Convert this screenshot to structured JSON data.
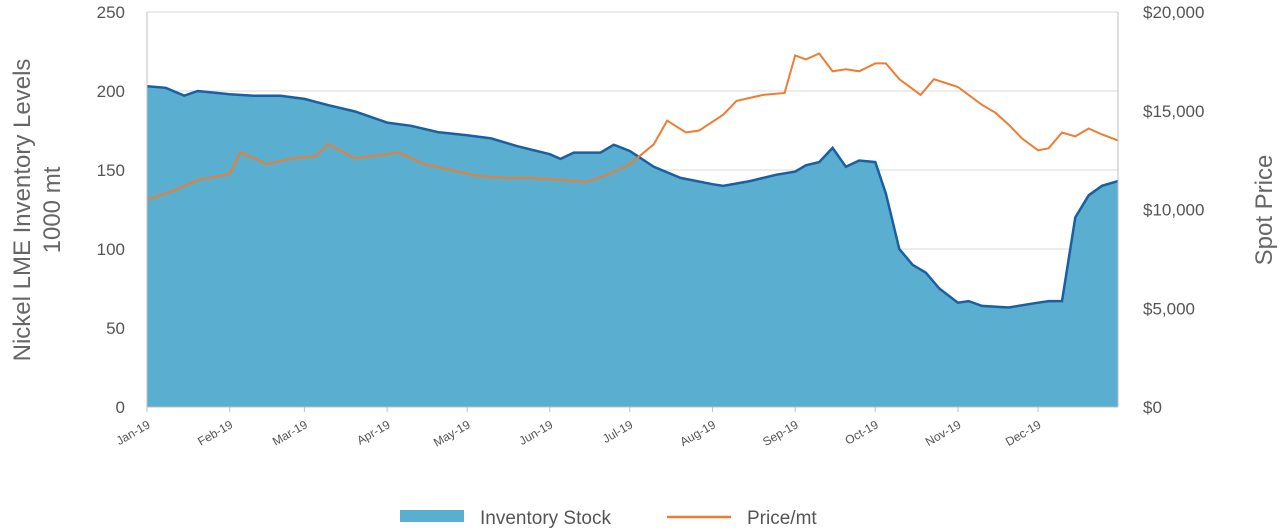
{
  "chart_data": {
    "type": "area",
    "ylabel_left_line1": "Nickel LME Inventory Levels",
    "ylabel_left_line2": "1000 mt",
    "ylabel_right": "Spot Price",
    "ylim_left": [
      0,
      250
    ],
    "ylim_right": [
      0,
      20000
    ],
    "y_ticks_left": [
      "0",
      "50",
      "100",
      "150",
      "200",
      "250"
    ],
    "y_ticks_right": [
      "$0",
      "$5,000",
      "$10,000",
      "$15,000",
      "$20,000"
    ],
    "grid": "horizontal",
    "legend_position": "bottom",
    "x_ticks": [
      "Jan-19",
      "Feb-19",
      "Mar-19",
      "Apr-19",
      "May-19",
      "Jun-19",
      "Jul-19",
      "Aug-19",
      "Sep-19",
      "Oct-19",
      "Nov-19",
      "Dec-19"
    ],
    "colors": {
      "inventory": "#5aaed0",
      "inventory_line": "#1a5fa3",
      "price": "#ed7d31",
      "grid": "#d9d9d9"
    },
    "series": [
      {
        "name": "Inventory Stock",
        "axis": "left",
        "type": "area",
        "x": [
          "2019-01-01",
          "2019-01-08",
          "2019-01-15",
          "2019-01-20",
          "2019-02-01",
          "2019-02-10",
          "2019-02-20",
          "2019-03-01",
          "2019-03-10",
          "2019-03-20",
          "2019-04-01",
          "2019-04-10",
          "2019-04-20",
          "2019-05-01",
          "2019-05-10",
          "2019-05-20",
          "2019-06-01",
          "2019-06-05",
          "2019-06-10",
          "2019-06-20",
          "2019-06-25",
          "2019-07-01",
          "2019-07-10",
          "2019-07-20",
          "2019-08-01",
          "2019-08-05",
          "2019-08-15",
          "2019-08-25",
          "2019-09-01",
          "2019-09-05",
          "2019-09-10",
          "2019-09-15",
          "2019-09-20",
          "2019-09-25",
          "2019-10-01",
          "2019-10-05",
          "2019-10-10",
          "2019-10-15",
          "2019-10-20",
          "2019-10-25",
          "2019-11-01",
          "2019-11-05",
          "2019-11-10",
          "2019-11-20",
          "2019-12-01",
          "2019-12-05",
          "2019-12-10",
          "2019-12-15",
          "2019-12-20",
          "2019-12-25",
          "2019-12-31"
        ],
        "values": [
          203,
          202,
          197,
          200,
          198,
          197,
          197,
          195,
          191,
          187,
          180,
          178,
          174,
          172,
          170,
          165,
          160,
          157,
          161,
          161,
          166,
          162,
          152,
          145,
          141,
          140,
          143,
          147,
          149,
          153,
          155,
          164,
          152,
          156,
          155,
          135,
          100,
          90,
          85,
          75,
          66,
          67,
          64,
          63,
          66,
          67,
          67,
          120,
          134,
          140,
          143
        ]
      },
      {
        "name": "Price/mt",
        "axis": "right",
        "type": "line",
        "x": [
          "2019-01-01",
          "2019-01-10",
          "2019-01-20",
          "2019-02-01",
          "2019-02-05",
          "2019-02-15",
          "2019-02-25",
          "2019-03-05",
          "2019-03-10",
          "2019-03-20",
          "2019-04-01",
          "2019-04-05",
          "2019-04-15",
          "2019-04-25",
          "2019-05-05",
          "2019-05-15",
          "2019-05-25",
          "2019-06-05",
          "2019-06-15",
          "2019-06-25",
          "2019-07-01",
          "2019-07-10",
          "2019-07-15",
          "2019-07-22",
          "2019-07-27",
          "2019-08-05",
          "2019-08-10",
          "2019-08-20",
          "2019-08-28",
          "2019-09-01",
          "2019-09-05",
          "2019-09-10",
          "2019-09-15",
          "2019-09-20",
          "2019-09-25",
          "2019-10-01",
          "2019-10-05",
          "2019-10-10",
          "2019-10-18",
          "2019-10-23",
          "2019-11-01",
          "2019-11-10",
          "2019-11-15",
          "2019-11-20",
          "2019-11-25",
          "2019-12-01",
          "2019-12-05",
          "2019-12-10",
          "2019-12-15",
          "2019-12-20",
          "2019-12-25",
          "2019-12-31"
        ],
        "values": [
          10500,
          10900,
          11500,
          11800,
          12900,
          12300,
          12600,
          12700,
          13300,
          12600,
          12800,
          12900,
          12300,
          12000,
          11700,
          11600,
          11600,
          11500,
          11400,
          11900,
          12300,
          13300,
          14500,
          13900,
          14000,
          14800,
          15500,
          15800,
          15900,
          17800,
          17600,
          17900,
          17000,
          17100,
          17000,
          17400,
          17400,
          16600,
          15800,
          16600,
          16200,
          15300,
          14900,
          14300,
          13600,
          13000,
          13100,
          13900,
          13700,
          14100,
          13800,
          13500
        ]
      }
    ]
  }
}
